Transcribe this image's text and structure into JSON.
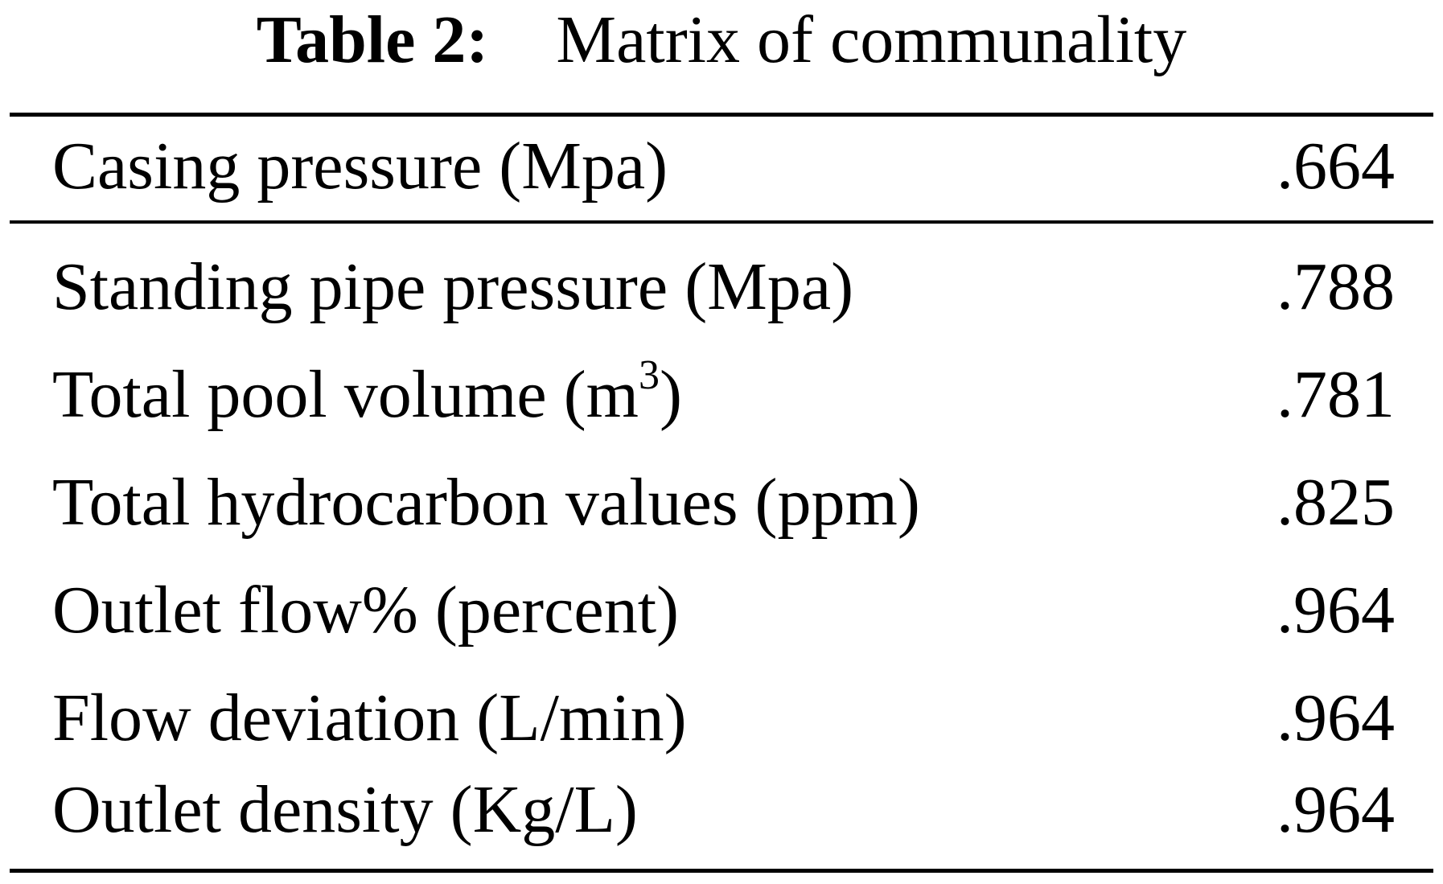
{
  "caption": {
    "label": "Table 2:",
    "title": "Matrix of communality"
  },
  "header_row": {
    "label": "Casing pressure (Mpa)",
    "value": ".664"
  },
  "rows": [
    {
      "label": "Standing pipe pressure (Mpa)",
      "value": ".788"
    },
    {
      "label_main": "Total pool volume (m",
      "label_sup": "3",
      "label_end": ")",
      "value": ".781"
    },
    {
      "label": "Total hydrocarbon values (ppm)",
      "value": ".825"
    },
    {
      "label": "Outlet flow% (percent)",
      "value": ".964"
    },
    {
      "label": "Flow deviation (L/min)",
      "value": ".964"
    },
    {
      "label": "Outlet density (Kg/L)",
      "value": ".964"
    }
  ]
}
